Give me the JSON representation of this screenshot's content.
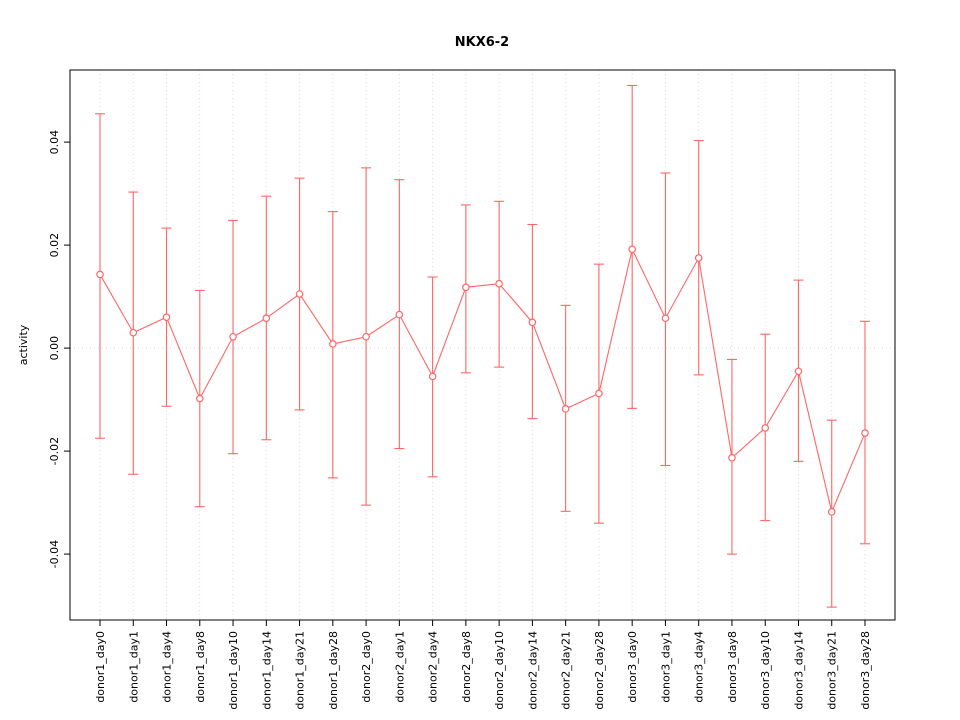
{
  "title": "NKX6-2",
  "chart_data": {
    "type": "line",
    "subtype": "points-with-error-bars",
    "title": "NKX6-2",
    "xlabel": "",
    "ylabel": "activity",
    "ylim": [
      -0.0528,
      0.054
    ],
    "yticks": [
      -0.04,
      -0.02,
      0,
      0.02,
      0.04
    ],
    "grid": "vertical-dotted",
    "zero_line": true,
    "legend": "none",
    "point_color": "#FF6666",
    "grid_color": "#DCDCDC",
    "axis_color": "#000000",
    "categories": [
      "donor1_day0",
      "donor1_day1",
      "donor1_day4",
      "donor1_day8",
      "donor1_day10",
      "donor1_day14",
      "donor1_day21",
      "donor1_day28",
      "donor2_day0",
      "donor2_day1",
      "donor2_day4",
      "donor2_day8",
      "donor2_day10",
      "donor2_day14",
      "donor2_day21",
      "donor2_day28",
      "donor3_day0",
      "donor3_day1",
      "donor3_day4",
      "donor3_day8",
      "donor3_day10",
      "donor3_day14",
      "donor3_day21",
      "donor3_day28"
    ],
    "series": [
      {
        "name": "activity",
        "values": [
          0.0143,
          0.003,
          0.006,
          -0.0098,
          0.0022,
          0.0058,
          0.0105,
          0.0008,
          0.0022,
          0.0065,
          -0.0055,
          0.0118,
          0.0125,
          0.005,
          -0.0118,
          -0.0088,
          0.0192,
          0.0058,
          0.0175,
          -0.0213,
          -0.0155,
          -0.0045,
          -0.0318,
          -0.0165
        ],
        "upper": [
          0.0455,
          0.0303,
          0.0233,
          0.0112,
          0.0248,
          0.0295,
          0.033,
          0.0265,
          0.035,
          0.0327,
          0.0138,
          0.0278,
          0.0285,
          0.024,
          0.0083,
          0.0163,
          0.051,
          0.034,
          0.0403,
          -0.0022,
          0.0027,
          0.0132,
          -0.014,
          0.0052
        ],
        "lower": [
          -0.0175,
          -0.0245,
          -0.0113,
          -0.0308,
          -0.0205,
          -0.0178,
          -0.012,
          -0.0252,
          -0.0305,
          -0.0195,
          -0.025,
          -0.0048,
          -0.0037,
          -0.0137,
          -0.0317,
          -0.034,
          -0.0117,
          -0.0228,
          -0.0052,
          -0.04,
          -0.0335,
          -0.022,
          -0.0503,
          -0.038
        ]
      }
    ]
  }
}
